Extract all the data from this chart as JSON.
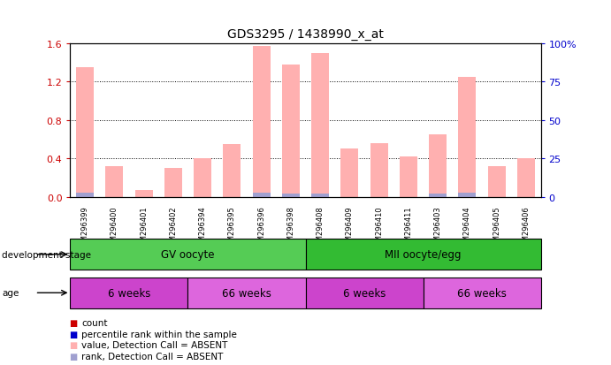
{
  "title": "GDS3295 / 1438990_x_at",
  "samples": [
    "GSM296399",
    "GSM296400",
    "GSM296401",
    "GSM296402",
    "GSM296394",
    "GSM296395",
    "GSM296396",
    "GSM296398",
    "GSM296408",
    "GSM296409",
    "GSM296410",
    "GSM296411",
    "GSM296403",
    "GSM296404",
    "GSM296405",
    "GSM296406"
  ],
  "bar_values": [
    1.35,
    0.32,
    0.07,
    0.3,
    0.4,
    0.55,
    1.57,
    1.38,
    1.5,
    0.5,
    0.56,
    0.42,
    0.65,
    1.25,
    0.32,
    0.4
  ],
  "small_bar_values": [
    0.04,
    0.0,
    0.0,
    0.0,
    0.0,
    0.0,
    0.04,
    0.03,
    0.03,
    0.0,
    0.0,
    0.0,
    0.03,
    0.04,
    0.0,
    0.0
  ],
  "bar_color": "#ffb0b0",
  "small_bar_color": "#a0a0d0",
  "ylim_left": [
    0,
    1.6
  ],
  "ylim_right": [
    0,
    100
  ],
  "yticks_left": [
    0,
    0.4,
    0.8,
    1.2,
    1.6
  ],
  "yticks_right": [
    0,
    25,
    50,
    75,
    100
  ],
  "ylabel_left_color": "#cc0000",
  "ylabel_right_color": "#0000cc",
  "background_color": "#ffffff",
  "plot_bg_color": "#ffffff",
  "dev_stage_colors": [
    "#55cc55",
    "#44bb44"
  ],
  "age_colors": [
    "#cc44cc",
    "#cc44cc",
    "#cc44cc",
    "#cc44cc"
  ],
  "age_colors_alt": [
    "#dd77dd",
    "#dd77dd"
  ],
  "dev_stage_groups": [
    {
      "label": "GV oocyte",
      "start": 0,
      "end": 8,
      "color": "#55cc55"
    },
    {
      "label": "MII oocyte/egg",
      "start": 8,
      "end": 16,
      "color": "#33bb33"
    }
  ],
  "age_groups": [
    {
      "label": "6 weeks",
      "start": 0,
      "end": 4,
      "color": "#cc44cc"
    },
    {
      "label": "66 weeks",
      "start": 4,
      "end": 8,
      "color": "#dd66dd"
    },
    {
      "label": "6 weeks",
      "start": 8,
      "end": 12,
      "color": "#cc44cc"
    },
    {
      "label": "66 weeks",
      "start": 12,
      "end": 16,
      "color": "#dd66dd"
    }
  ],
  "legend_items": [
    {
      "label": "count",
      "color": "#cc0000"
    },
    {
      "label": "percentile rank within the sample",
      "color": "#0000cc"
    },
    {
      "label": "value, Detection Call = ABSENT",
      "color": "#ffb0b0"
    },
    {
      "label": "rank, Detection Call = ABSENT",
      "color": "#a0a0d0"
    }
  ],
  "dev_stage_label": "development stage",
  "age_label": "age",
  "grid_vals": [
    0.4,
    0.8,
    1.2
  ]
}
